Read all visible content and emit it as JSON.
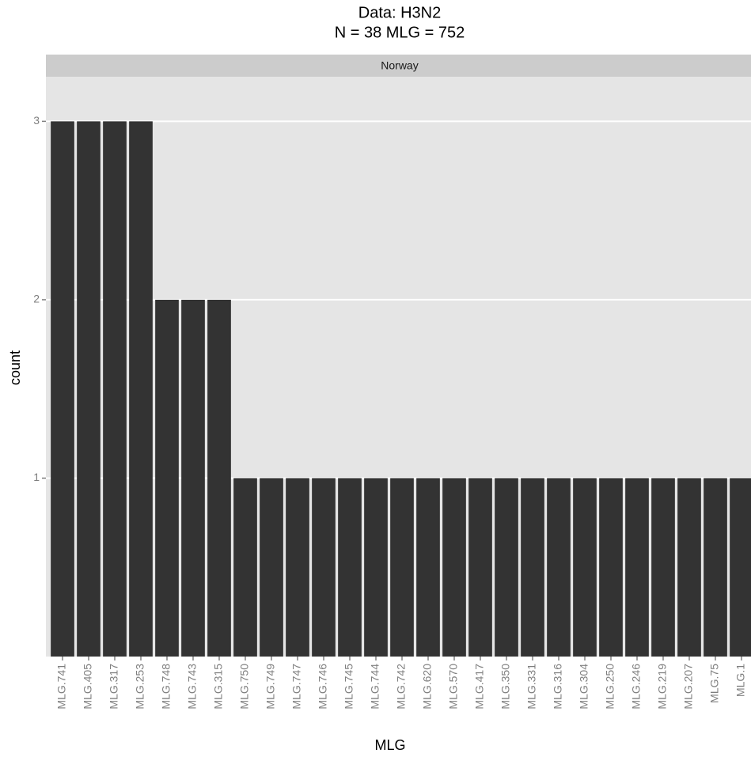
{
  "chart_data": {
    "type": "bar",
    "title": "Data: H3N2",
    "subtitle": "N = 38 MLG = 752",
    "facet": "Norway",
    "x_label": "MLG",
    "y_label": "count",
    "categories": [
      "MLG.741",
      "MLG.405",
      "MLG.317",
      "MLG.253",
      "MLG.748",
      "MLG.743",
      "MLG.315",
      "MLG.750",
      "MLG.749",
      "MLG.747",
      "MLG.746",
      "MLG.745",
      "MLG.744",
      "MLG.742",
      "MLG.620",
      "MLG.570",
      "MLG.417",
      "MLG.350",
      "MLG.331",
      "MLG.316",
      "MLG.304",
      "MLG.250",
      "MLG.246",
      "MLG.219",
      "MLG.207",
      "MLG.75",
      "MLG.1"
    ],
    "values": [
      3,
      3,
      3,
      3,
      2,
      2,
      2,
      1,
      1,
      1,
      1,
      1,
      1,
      1,
      1,
      1,
      1,
      1,
      1,
      1,
      1,
      1,
      1,
      1,
      1,
      1,
      1
    ],
    "color": "#333333",
    "ylim": [
      0,
      3.25
    ],
    "yticks": [
      1,
      2,
      3
    ],
    "grid": true
  }
}
